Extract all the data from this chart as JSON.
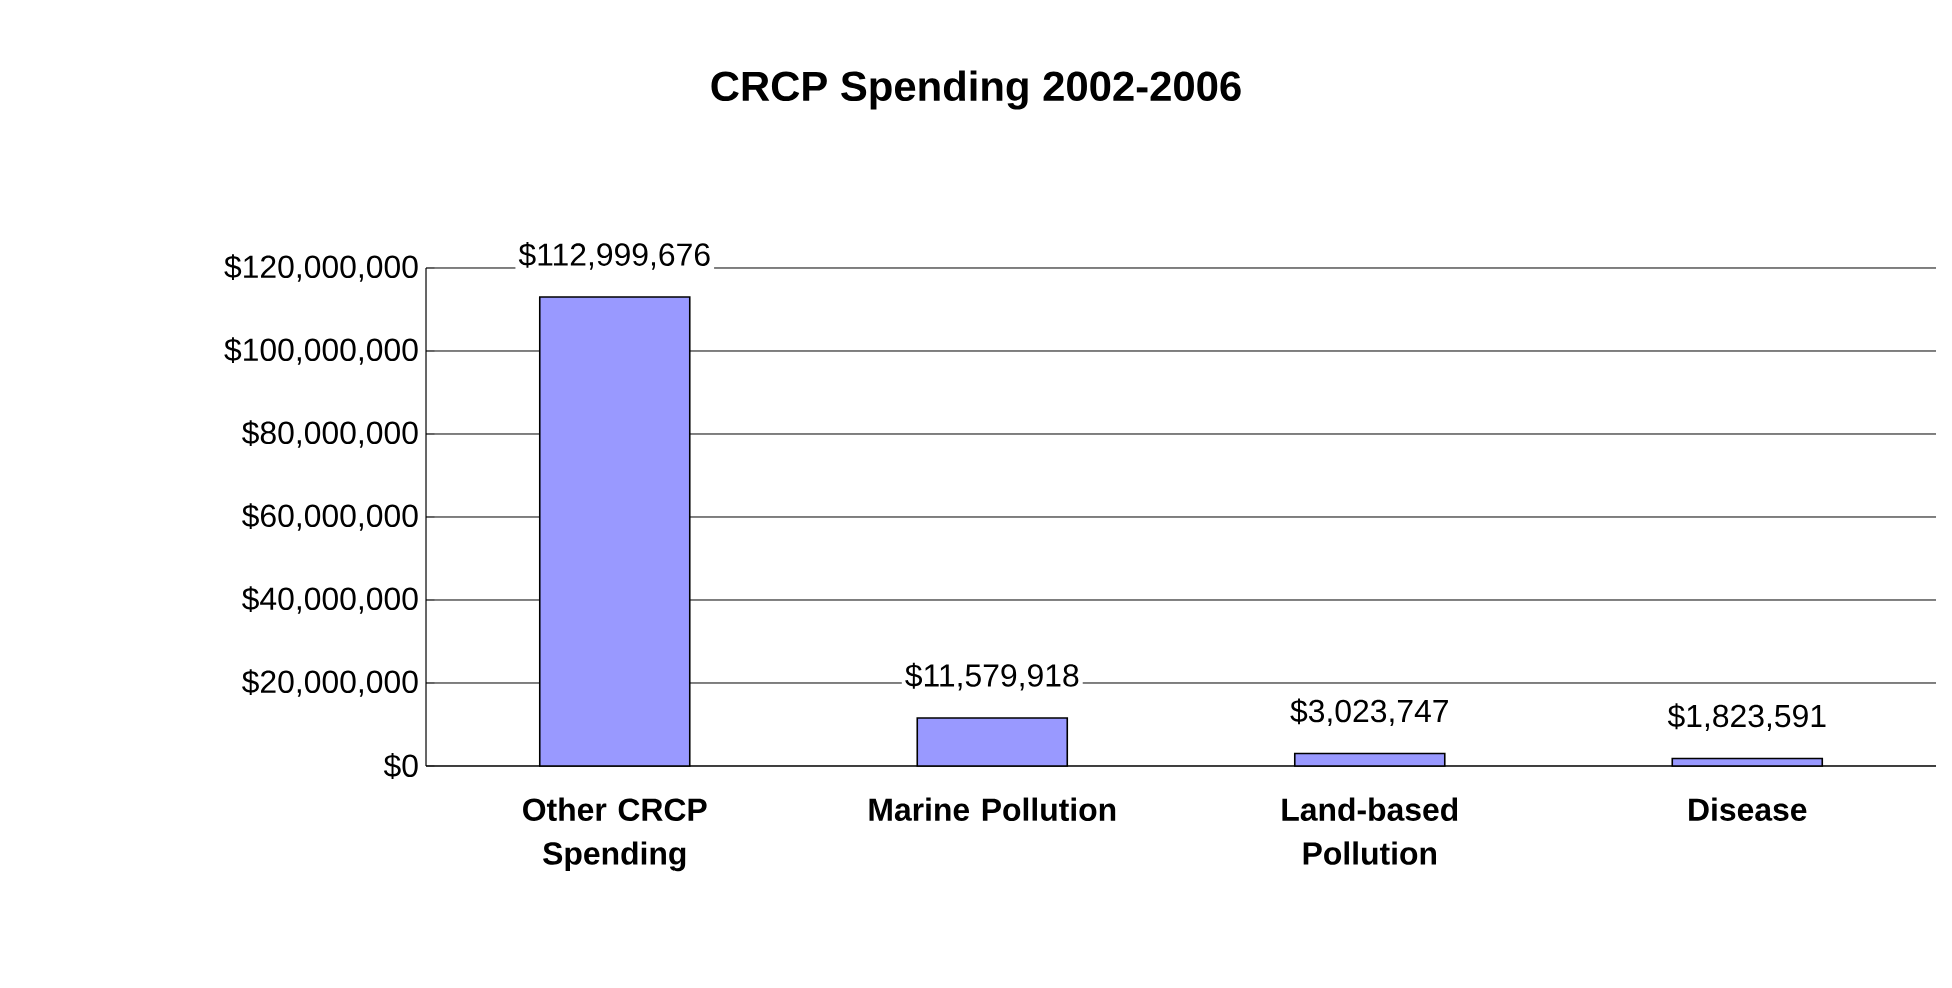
{
  "chart_data": {
    "type": "bar",
    "title": "CRCP Spending 2002-2006",
    "categories": [
      "Other CRCP Spending",
      "Marine Pollution",
      "Land-based Pollution",
      "Disease"
    ],
    "values": [
      112999676,
      11579918,
      3023747,
      1823591
    ],
    "value_labels": [
      "$112,999,676",
      "$11,579,918",
      "$3,023,747",
      "$1,823,591"
    ],
    "color": "#9999ff",
    "ylim": [
      0,
      120000000
    ],
    "yticks": [
      {
        "value": 0,
        "label": "$0"
      },
      {
        "value": 20000000,
        "label": "$20,000,000"
      },
      {
        "value": 40000000,
        "label": "$40,000,000"
      },
      {
        "value": 60000000,
        "label": "$60,000,000"
      },
      {
        "value": 80000000,
        "label": "$80,000,000"
      },
      {
        "value": 100000000,
        "label": "$100,000,000"
      },
      {
        "value": 120000000,
        "label": "$120,000,000"
      }
    ],
    "grid": "y"
  }
}
